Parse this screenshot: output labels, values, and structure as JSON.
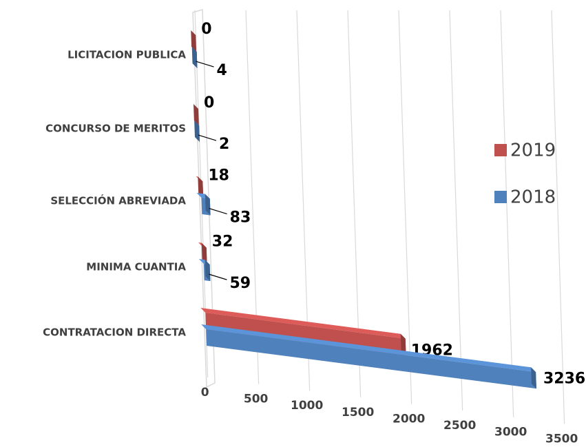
{
  "chart_data": {
    "type": "bar3d",
    "categories": [
      "LICITACION PUBLICA",
      "CONCURSO DE MERITOS",
      "SELECCIÓN ABREVIADA",
      "MINIMA CUANTIA",
      "CONTRATACION DIRECTA"
    ],
    "series": [
      {
        "name": "2019",
        "color": "#c0504d",
        "values": [
          0,
          0,
          18,
          32,
          1962
        ]
      },
      {
        "name": "2018",
        "color": "#4f81bd",
        "values": [
          4,
          2,
          83,
          59,
          3236
        ]
      }
    ],
    "xlim": [
      0,
      3500
    ],
    "xticks": [
      0,
      500,
      1000,
      1500,
      2000,
      2500,
      3000,
      3500
    ],
    "grid": true,
    "legend": "right"
  }
}
